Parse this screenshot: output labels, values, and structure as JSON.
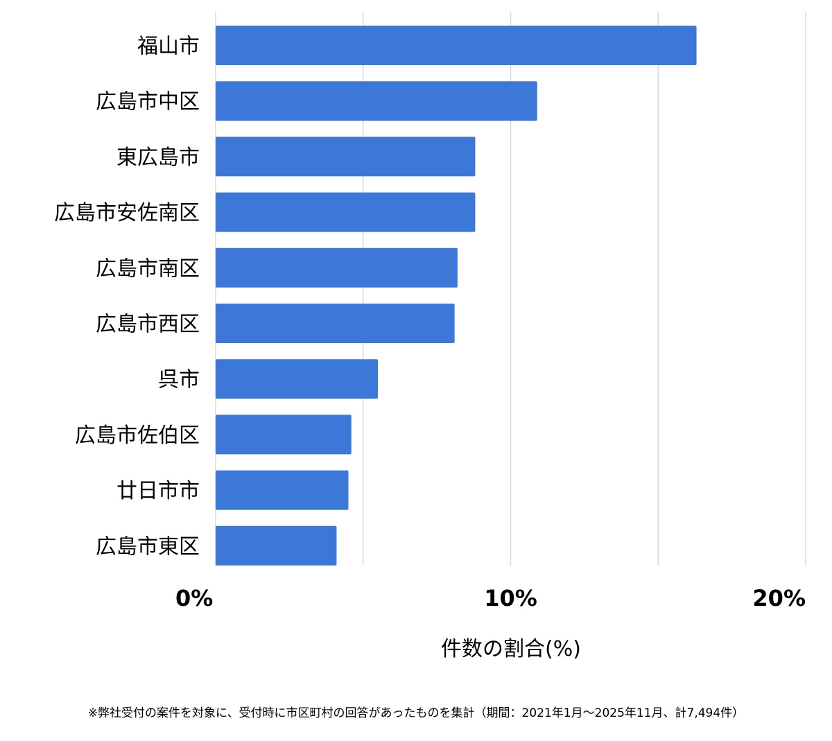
{
  "chart_data": {
    "type": "bar",
    "orientation": "horizontal",
    "categories": [
      "福山市",
      "広島市中区",
      "東広島市",
      "広島市安佐南区",
      "広島市南区",
      "広島市西区",
      "呉市",
      "広島市佐伯区",
      "廿日市市",
      "広島市東区"
    ],
    "values": [
      16.3,
      10.9,
      8.8,
      8.8,
      8.2,
      8.1,
      5.5,
      4.6,
      4.5,
      4.1
    ],
    "xlim": [
      0,
      20
    ],
    "major_ticks": [
      0,
      10,
      20
    ],
    "tick_labels": [
      "0%",
      "10%",
      "20%"
    ],
    "minor_gridlines": [
      5,
      15
    ],
    "xlabel": "件数の割合(%)",
    "ylabel": "",
    "title": "",
    "grid": true,
    "legend": "none",
    "bar_color": "#3c78d8",
    "grid_color": "#d9d9d9"
  },
  "footnote": "※弊社受付の案件を対象に、受付時に市区町村の回答があったものを集計（期間：2021年1月〜2025年11月、計7,494件）"
}
